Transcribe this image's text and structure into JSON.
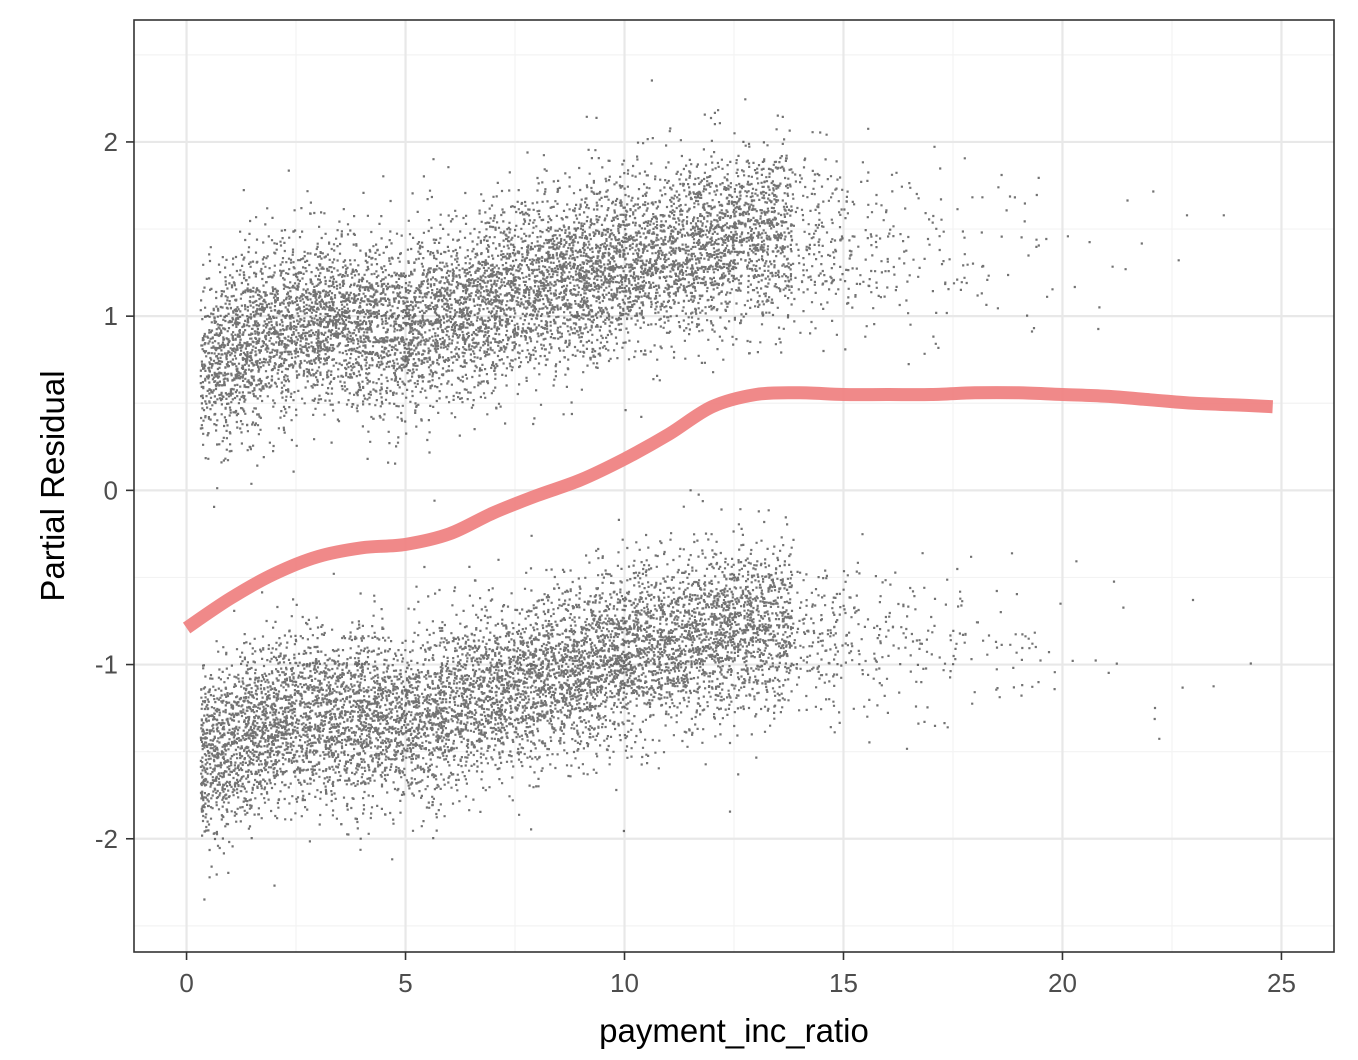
{
  "chart_data": {
    "type": "scatter",
    "title": "",
    "xlabel": "payment_inc_ratio",
    "ylabel": "Partial Residual",
    "xlim": [
      -1.2,
      26.2
    ],
    "ylim": [
      -2.65,
      2.7
    ],
    "x_ticks": [
      0,
      5,
      10,
      15,
      20,
      25
    ],
    "x_tick_labels": [
      "0",
      "5",
      "10",
      "15",
      "20",
      "25"
    ],
    "y_ticks": [
      -2,
      -1,
      0,
      1,
      2
    ],
    "y_tick_labels": [
      "-2",
      "-1",
      "0",
      "1",
      "2"
    ],
    "grid": true,
    "legend": "none",
    "colors": {
      "points": "#000000",
      "smooth_line": "#ef7f7f",
      "grid_major": "#e8e8e8",
      "grid_minor": "#f3f3f3",
      "panel_border": "#333333"
    },
    "series": [
      {
        "kind": "smooth-line",
        "x": [
          0,
          1,
          2,
          3,
          4,
          5,
          6,
          7,
          8,
          9,
          10,
          11,
          12,
          13,
          14,
          15,
          16,
          17,
          18,
          19,
          20,
          21,
          22,
          23,
          24,
          24.8
        ],
        "y": [
          -0.79,
          -0.62,
          -0.48,
          -0.38,
          -0.33,
          -0.31,
          -0.25,
          -0.13,
          -0.03,
          0.06,
          0.18,
          0.32,
          0.48,
          0.55,
          0.56,
          0.55,
          0.55,
          0.55,
          0.56,
          0.56,
          0.55,
          0.54,
          0.52,
          0.5,
          0.49,
          0.48
        ]
      },
      {
        "kind": "scatter-band-upper",
        "description_x": [
          0.5,
          1,
          2,
          3,
          4,
          5,
          6,
          7,
          8,
          9,
          10,
          11,
          12,
          13,
          14,
          15,
          16,
          17,
          18,
          19,
          20,
          21,
          22,
          23,
          24,
          25
        ],
        "center_y": [
          0.72,
          0.8,
          0.93,
          0.98,
          0.95,
          0.94,
          1.0,
          1.1,
          1.18,
          1.23,
          1.3,
          1.37,
          1.43,
          1.47,
          1.46,
          1.43,
          1.4,
          1.38,
          1.37,
          1.37,
          1.36,
          1.36,
          1.35,
          1.35,
          1.35,
          1.35
        ],
        "density": [
          0.6,
          1,
          1,
          1,
          1,
          1,
          1,
          1,
          1,
          1,
          1,
          0.95,
          0.9,
          0.85,
          0.75,
          0.55,
          0.4,
          0.3,
          0.22,
          0.16,
          0.1,
          0.06,
          0.04,
          0.03,
          0.02,
          0.015
        ]
      },
      {
        "kind": "scatter-band-lower",
        "description_x": [
          0.5,
          1,
          2,
          3,
          4,
          5,
          6,
          7,
          8,
          9,
          10,
          11,
          12,
          13,
          14,
          15,
          16,
          17,
          18,
          19,
          20,
          21,
          22,
          23,
          24,
          25
        ],
        "center_y": [
          -1.52,
          -1.45,
          -1.33,
          -1.28,
          -1.29,
          -1.3,
          -1.25,
          -1.15,
          -1.07,
          -1.02,
          -0.95,
          -0.87,
          -0.81,
          -0.78,
          -0.8,
          -0.83,
          -0.86,
          -0.88,
          -0.89,
          -0.89,
          -0.9,
          -0.9,
          -0.91,
          -0.91,
          -0.91,
          -0.91
        ],
        "density": [
          0.8,
          1,
          1,
          1,
          1,
          1,
          1,
          1,
          1,
          1,
          1,
          0.95,
          0.9,
          0.85,
          0.75,
          0.55,
          0.4,
          0.3,
          0.22,
          0.16,
          0.1,
          0.06,
          0.04,
          0.03,
          0.02,
          0.015
        ]
      }
    ]
  }
}
